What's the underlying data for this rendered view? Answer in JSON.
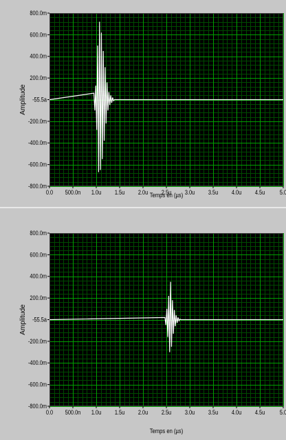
{
  "colors": {
    "panel_bg": "#c7c7c7",
    "plot_bg": "#000000",
    "major_grid": "#00a000",
    "minor_grid": "#004a00",
    "trace": "#ffffff",
    "text": "#000000"
  },
  "chart_data": [
    {
      "type": "line",
      "ylabel": "Amplitude",
      "xlabel": "Temps en (µs)",
      "xlim": [
        0,
        5
      ],
      "ylim": [
        -0.8,
        0.8
      ],
      "grid": true,
      "legend": "none",
      "x_ticks": [
        0,
        0.5,
        1,
        1.5,
        2,
        2.5,
        3,
        3.5,
        4,
        4.5,
        5
      ],
      "x_tick_labels": [
        "0.0",
        "500.0n",
        "1.0u",
        "1.5u",
        "2.0u",
        "2.5u",
        "3.0u",
        "3.5u",
        "4.0u",
        "4.5u",
        "5.0"
      ],
      "y_ticks": [
        0.8,
        0.6,
        0.4,
        0.2,
        0,
        -0.2,
        -0.4,
        -0.6,
        -0.8
      ],
      "y_tick_labels": [
        "800.0m",
        "600.0m",
        "400.0m",
        "200.0m",
        "-55.5a",
        "-200.0m",
        "-400.0m",
        "-600.0m",
        "-800.0m"
      ],
      "series": [
        {
          "x": [
            0,
            0.95,
            0.97,
            0.99,
            1.01,
            1.03,
            1.05,
            1.07,
            1.09,
            1.11,
            1.13,
            1.15,
            1.17,
            1.19,
            1.21,
            1.23,
            1.25,
            1.27,
            1.29,
            1.31,
            1.33,
            1.35,
            1.37,
            1.39,
            5
          ],
          "y": [
            0,
            0.06,
            -0.1,
            0.13,
            -0.28,
            0.5,
            -0.67,
            0.72,
            -0.65,
            0.62,
            -0.55,
            0.45,
            -0.38,
            0.3,
            -0.22,
            0.16,
            -0.1,
            0.07,
            -0.05,
            0.04,
            -0.03,
            0.02,
            -0.01,
            0,
            0
          ]
        }
      ]
    },
    {
      "type": "line",
      "ylabel": "Amplitude",
      "xlabel": "Temps en (µs)",
      "xlim": [
        0,
        5
      ],
      "ylim": [
        -0.8,
        0.8
      ],
      "grid": true,
      "legend": "none",
      "x_ticks": [
        0,
        0.5,
        1,
        1.5,
        2,
        2.5,
        3,
        3.5,
        4,
        4.5,
        5
      ],
      "x_tick_labels": [
        "0.0",
        "500.0n",
        "1.0u",
        "1.5u",
        "2.0u",
        "2.5u",
        "3.0u",
        "3.5u",
        "4.0u",
        "4.5u",
        "5.0"
      ],
      "y_ticks": [
        0.8,
        0.6,
        0.4,
        0.2,
        0,
        -0.2,
        -0.4,
        -0.6,
        -0.8
      ],
      "y_tick_labels": [
        "800.0m",
        "600.0m",
        "400.0m",
        "200.0m",
        "-55.5a",
        "-200.0m",
        "-400.0m",
        "-600.0m",
        "-800.0m"
      ],
      "series": [
        {
          "x": [
            0,
            2.47,
            2.49,
            2.51,
            2.53,
            2.55,
            2.57,
            2.59,
            2.61,
            2.63,
            2.65,
            2.67,
            2.69,
            2.71,
            2.73,
            2.75,
            2.77,
            2.79,
            2.81,
            5
          ],
          "y": [
            0,
            0.02,
            -0.05,
            0.1,
            -0.16,
            0.22,
            -0.3,
            0.35,
            -0.25,
            0.18,
            -0.13,
            0.09,
            -0.06,
            0.04,
            -0.03,
            0.02,
            -0.01,
            0.005,
            0,
            0
          ]
        }
      ]
    }
  ]
}
